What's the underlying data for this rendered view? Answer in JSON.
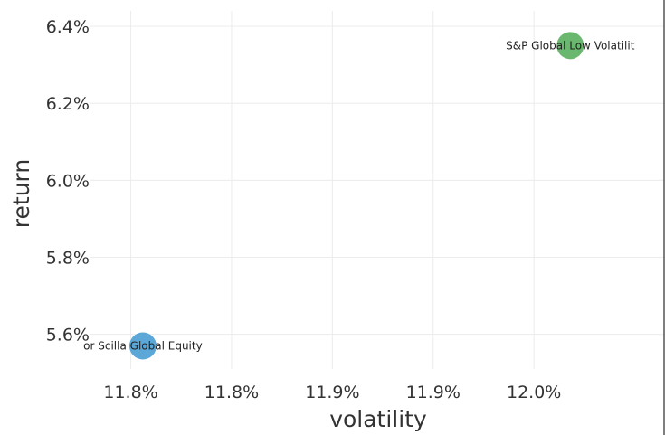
{
  "chart_data": {
    "type": "scatter",
    "title": "",
    "xlabel": "volatility",
    "ylabel": "return",
    "xlim": [
      11.755,
      12.04
    ],
    "ylim": [
      5.51,
      6.44
    ],
    "grid": true,
    "legend": "none",
    "x_ticks": [
      {
        "value": 11.775,
        "label": "11.8%"
      },
      {
        "value": 11.825,
        "label": "11.8%"
      },
      {
        "value": 11.875,
        "label": "11.9%"
      },
      {
        "value": 11.925,
        "label": "11.9%"
      },
      {
        "value": 11.975,
        "label": "12.0%"
      }
    ],
    "y_ticks": [
      {
        "value": 5.6,
        "label": "5.6%"
      },
      {
        "value": 5.8,
        "label": "5.8%"
      },
      {
        "value": 6.0,
        "label": "6.0%"
      },
      {
        "value": 6.2,
        "label": "6.2%"
      },
      {
        "value": 6.4,
        "label": "6.4%"
      }
    ],
    "points": [
      {
        "label": "Heptagon Fund plc - Kopernik Global All-Cap Equity / Harbor Scilla Global Equity",
        "display_label": "or Scilla Global Equity",
        "x": 11.781,
        "y": 5.57,
        "color": "#5ba8d8"
      },
      {
        "label": "S&P Global Low Volatility",
        "display_label": "S&P Global Low Volatilit",
        "x": 11.993,
        "y": 6.35,
        "color": "#6ab86f"
      }
    ]
  }
}
